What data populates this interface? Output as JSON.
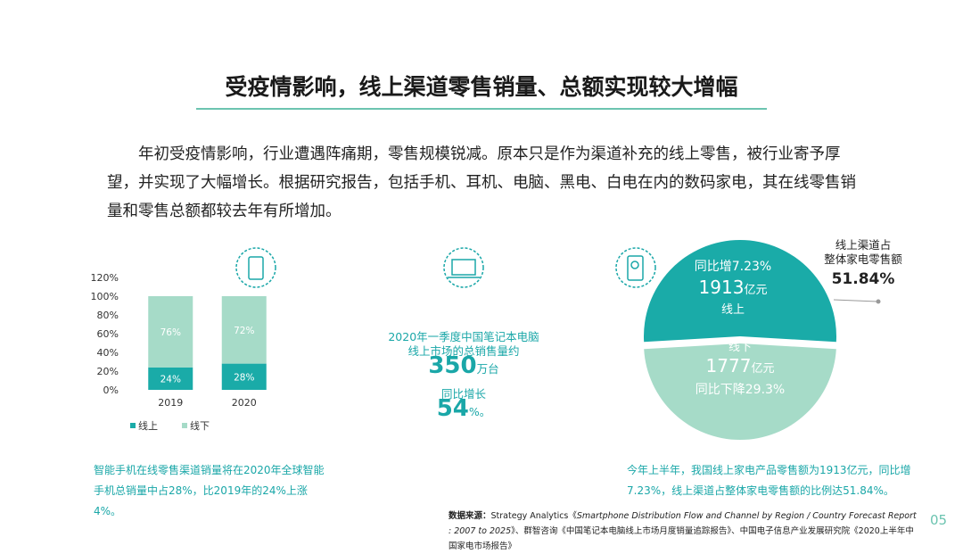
{
  "header": {
    "title": "受疫情影响，线上渠道零售销量、总额实现较大增幅"
  },
  "body": {
    "text": "年初受疫情影响，行业遭遇阵痛期，零售规模锐减。原本只是作为渠道补充的线上零售，被行业寄予厚望，并实现了大幅增长。根据研究报告，包括手机、耳机、电脑、黑电、白电在内的数码家电，其在线零售销量和零售总额都较去年有所增加。"
  },
  "chart_data": [
    {
      "type": "stacked-bar",
      "categories": [
        "2019",
        "2020"
      ],
      "series": [
        {
          "name": "线上",
          "color": "#1aaba8",
          "values": [
            24,
            28
          ],
          "value_labels": [
            "24%",
            "28%"
          ]
        },
        {
          "name": "线下",
          "color": "#a6dbc8",
          "values": [
            76,
            72
          ],
          "value_labels": [
            "76%",
            "72%"
          ]
        }
      ],
      "ylim": [
        0,
        120
      ],
      "yticks": [
        {
          "value": 0,
          "label": "0%"
        },
        {
          "value": 20,
          "label": "20%"
        },
        {
          "value": 40,
          "label": "40%"
        },
        {
          "value": 60,
          "label": "60%"
        },
        {
          "value": 80,
          "label": "80%"
        },
        {
          "value": 100,
          "label": "100%"
        },
        {
          "value": 120,
          "label": "120%"
        }
      ],
      "grid": false,
      "legend": "bottom"
    },
    {
      "type": "pie",
      "categories": [
        "线上",
        "线下"
      ],
      "values": [
        1913,
        1777
      ],
      "unit": "亿元",
      "notes": [
        "同比增7.23%",
        "同比下降29.3%"
      ],
      "colors": [
        "#1aaba8",
        "#a6dbc8"
      ],
      "callout": {
        "lines": [
          "线上渠道占",
          "整体家电零售额"
        ],
        "value_label": "51.84%"
      }
    }
  ],
  "stats": {
    "caption": "2020年一季度中国笔记本电脑线上市场的总销售量约",
    "sales": "350",
    "sales_unit": "万台",
    "growth_caption": "同比增长",
    "growth": "54",
    "growth_unit": "%。"
  },
  "notes": {
    "left": "智能手机在线零售渠道销量将在2020年全球智能手机总销量中占28%，比2019年的24%上涨4%。",
    "right": "今年上半年，我国线上家电产品零售额为1913亿元，同比增7.23%，线上渠道占整体家电零售额的比例达51.84%。"
  },
  "source": {
    "label": "数据来源：",
    "part1": "Strategy Analytics《",
    "part2": "Smartphone Distribution Flow and Channel by Region / Country Forecast Report : 2007 to 2025",
    "part3": "》、群智咨询《中国笔记本电脑线上市场月度销量追踪报告》、中国电子信息产业发展研究院《2020上半年中国家电市场报告》"
  },
  "page": "05"
}
